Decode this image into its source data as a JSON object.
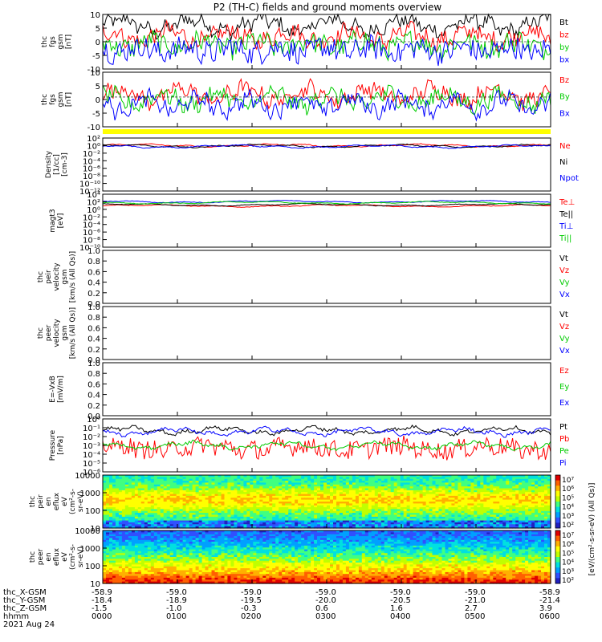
{
  "title": "P2 (TH-C) fields and ground moments overview",
  "chart_data": {
    "type": "line",
    "x_ticks": [
      "0000",
      "0100",
      "0200",
      "0300",
      "0400",
      "0500",
      "0600"
    ],
    "panels": [
      {
        "name": "fgs-gsm-raw",
        "ylabel_lines": [
          "thc",
          "fgs",
          "gsm",
          "[nT]"
        ],
        "ylim": [
          -10,
          10
        ],
        "yticks": [
          "10",
          "5",
          "0",
          "-5",
          "-10"
        ],
        "legend": [
          {
            "label": "Bt",
            "color": "#000000"
          },
          {
            "label": "bz",
            "color": "#ff0000"
          },
          {
            "label": "by",
            "color": "#00cc00"
          },
          {
            "label": "bx",
            "color": "#0000ff"
          }
        ]
      },
      {
        "name": "fgs-gsm-dsl",
        "ylabel_lines": [
          "thc",
          "fgs",
          "gsm",
          "[nT]"
        ],
        "ylim": [
          -12,
          10
        ],
        "yticks": [
          "10",
          "5",
          "0",
          "-5",
          "-10"
        ],
        "legend": [
          {
            "label": "Bz",
            "color": "#ff0000"
          },
          {
            "label": "By",
            "color": "#00cc00"
          },
          {
            "label": "Bx",
            "color": "#0000ff"
          }
        ]
      },
      {
        "name": "density",
        "ylabel_lines": [
          "Density",
          "[1/cc]",
          "[cm-3]"
        ],
        "ylim_log": [
          -12,
          3
        ],
        "yticks": [
          "10²",
          "10⁰",
          "10⁻²",
          "10⁻⁴",
          "10⁻⁶",
          "10⁻⁸",
          "10⁻¹⁰",
          "10⁻¹²"
        ],
        "legend": [
          {
            "label": "Ne",
            "color": "#ff0000"
          },
          {
            "label": "Ni",
            "color": "#000000"
          },
          {
            "label": "Npot",
            "color": "#0000ff"
          }
        ]
      },
      {
        "name": "temperature",
        "ylabel_lines": [
          "magt3",
          "[eV]"
        ],
        "ylim_log": [
          -12,
          5
        ],
        "yticks": [
          "10⁴",
          "10²",
          "10⁰",
          "10⁻²",
          "10⁻⁴",
          "10⁻⁶",
          "10⁻⁸",
          "10⁻¹⁰"
        ],
        "legend": [
          {
            "label": "Te⊥",
            "color": "#ff0000"
          },
          {
            "label": "Te||",
            "color": "#000000"
          },
          {
            "label": "Ti⊥",
            "color": "#0000ff"
          },
          {
            "label": "Ti||",
            "color": "#00cc00"
          }
        ]
      },
      {
        "name": "peir-velocity",
        "ylabel_lines": [
          "thc",
          "peir",
          "velocity",
          "gsm",
          "[km/s (All Qs)]"
        ],
        "ylim": [
          0,
          1
        ],
        "yticks": [
          "1.0",
          "0.8",
          "0.6",
          "0.4",
          "0.2",
          "0.0"
        ],
        "legend": [
          {
            "label": "Vt",
            "color": "#000000"
          },
          {
            "label": "Vz",
            "color": "#ff0000"
          },
          {
            "label": "Vy",
            "color": "#00cc00"
          },
          {
            "label": "Vx",
            "color": "#0000ff"
          }
        ]
      },
      {
        "name": "peer-velocity",
        "ylabel_lines": [
          "thc",
          "peer",
          "velocity",
          "gsm",
          "[km/s (All Qs)]"
        ],
        "ylim": [
          0,
          1
        ],
        "yticks": [
          "1.0",
          "0.8",
          "0.6",
          "0.4",
          "0.2",
          "0.0"
        ],
        "legend": [
          {
            "label": "Vt",
            "color": "#000000"
          },
          {
            "label": "Vz",
            "color": "#ff0000"
          },
          {
            "label": "Vy",
            "color": "#00cc00"
          },
          {
            "label": "Vx",
            "color": "#0000ff"
          }
        ]
      },
      {
        "name": "efield",
        "ylabel_lines": [
          "E=-VxB",
          "[mV/m]"
        ],
        "ylim": [
          0,
          1
        ],
        "yticks": [
          "1.0",
          "0.8",
          "0.6",
          "0.4",
          "0.2",
          "0.0"
        ],
        "legend": [
          {
            "label": "Ez",
            "color": "#ff0000"
          },
          {
            "label": "Ey",
            "color": "#00cc00"
          },
          {
            "label": "Ex",
            "color": "#0000ff"
          }
        ]
      },
      {
        "name": "pressure",
        "ylabel_lines": [
          "Pressure",
          "[nPa]"
        ],
        "ylim_log": [
          -6,
          0
        ],
        "yticks": [
          "10⁰",
          "10⁻¹",
          "10⁻²",
          "10⁻³",
          "10⁻⁴",
          "10⁻⁵",
          "10⁻⁶"
        ],
        "legend": [
          {
            "label": "Pt",
            "color": "#000000"
          },
          {
            "label": "Pb",
            "color": "#ff0000"
          },
          {
            "label": "Pe",
            "color": "#00cc00"
          },
          {
            "label": "Pi",
            "color": "#0000ff"
          }
        ]
      },
      {
        "name": "peir-eflux",
        "ylabel_lines": [
          "thc",
          "peir",
          "en",
          "eflux",
          "eV",
          "(cm²-s-",
          "sr-eV)"
        ],
        "yticks": [
          "10000",
          "1000",
          "100",
          "10"
        ],
        "colorbar_ticks": [
          "10⁷",
          "10⁶",
          "10⁵",
          "10⁴",
          "10³",
          "10²"
        ],
        "colorbar_label": "[eV/(cm²-s-sr-eV) (All Qs)]"
      },
      {
        "name": "peer-eflux",
        "ylabel_lines": [
          "thc",
          "peer",
          "en",
          "eflux",
          "eV",
          "(cm²-s-",
          "sr-eV)"
        ],
        "yticks": [
          "10000",
          "1000",
          "100",
          "10"
        ],
        "colorbar_ticks": [
          "10⁷",
          "10⁶",
          "10⁵",
          "10⁴",
          "10³",
          "10²"
        ],
        "colorbar_label": "[eV/(cm²-s-sr-eV) (All Qs)]"
      }
    ],
    "ephemeris": {
      "labels": [
        "thc_X-GSM",
        "thc_Y-GSM",
        "thc_Z-GSM",
        "hhmm",
        "2021 Aug 24"
      ],
      "rows": [
        [
          "-58.9",
          "-59.0",
          "-59.0",
          "-59.0",
          "-59.0",
          "-59.0",
          "-58.9"
        ],
        [
          "-18.4",
          "-18.9",
          "-19.5",
          "-20.0",
          "-20.5",
          "-21.0",
          "-21.4"
        ],
        [
          "-1.5",
          "-1.0",
          "-0.3",
          "0.6",
          "1.6",
          "2.7",
          "3.9"
        ],
        [
          "0000",
          "0100",
          "0200",
          "0300",
          "0400",
          "0500",
          "0600"
        ]
      ]
    }
  }
}
